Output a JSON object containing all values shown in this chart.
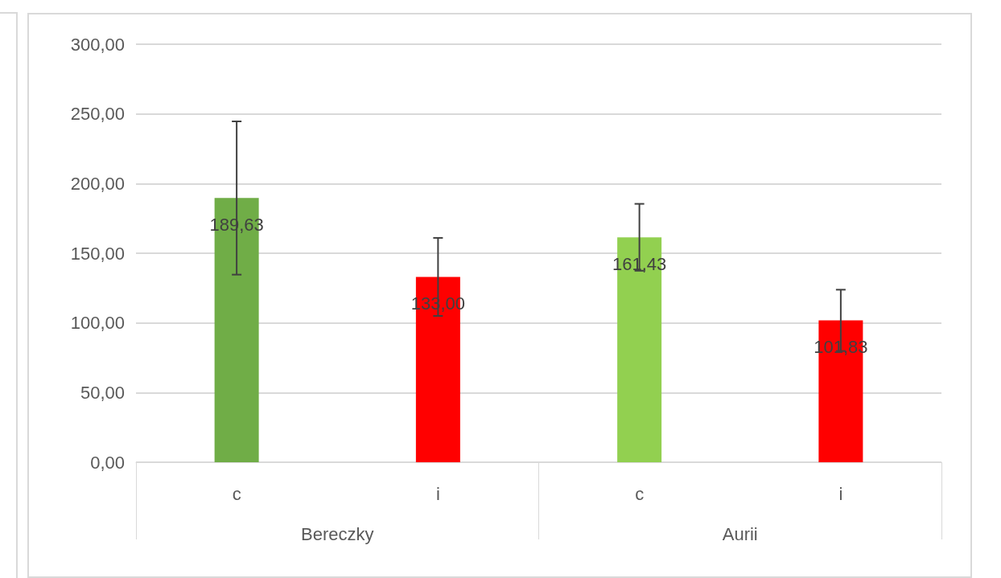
{
  "chart_data": {
    "type": "bar",
    "categories": [
      "c",
      "i",
      "c",
      "i"
    ],
    "values": [
      189.63,
      133.0,
      161.43,
      101.83
    ],
    "colors": [
      "#70ad47",
      "#ff0000",
      "#92d050",
      "#ff0000"
    ],
    "errors": [
      55,
      28,
      24,
      22
    ],
    "value_labels": [
      "189,63",
      "133,00",
      "161,43",
      "101,83"
    ],
    "annotations": [
      "Bereczky",
      "Aurii"
    ],
    "ylim": [
      0,
      300
    ],
    "yticks": [
      {
        "value": 0,
        "label": "0,00"
      },
      {
        "value": 50,
        "label": "50,00"
      },
      {
        "value": 100,
        "label": "100,00"
      },
      {
        "value": 150,
        "label": "150,00"
      },
      {
        "value": 200,
        "label": "200,00"
      },
      {
        "value": 250,
        "label": "250,00"
      },
      {
        "value": 300,
        "label": "300,00"
      }
    ],
    "grid": true
  }
}
